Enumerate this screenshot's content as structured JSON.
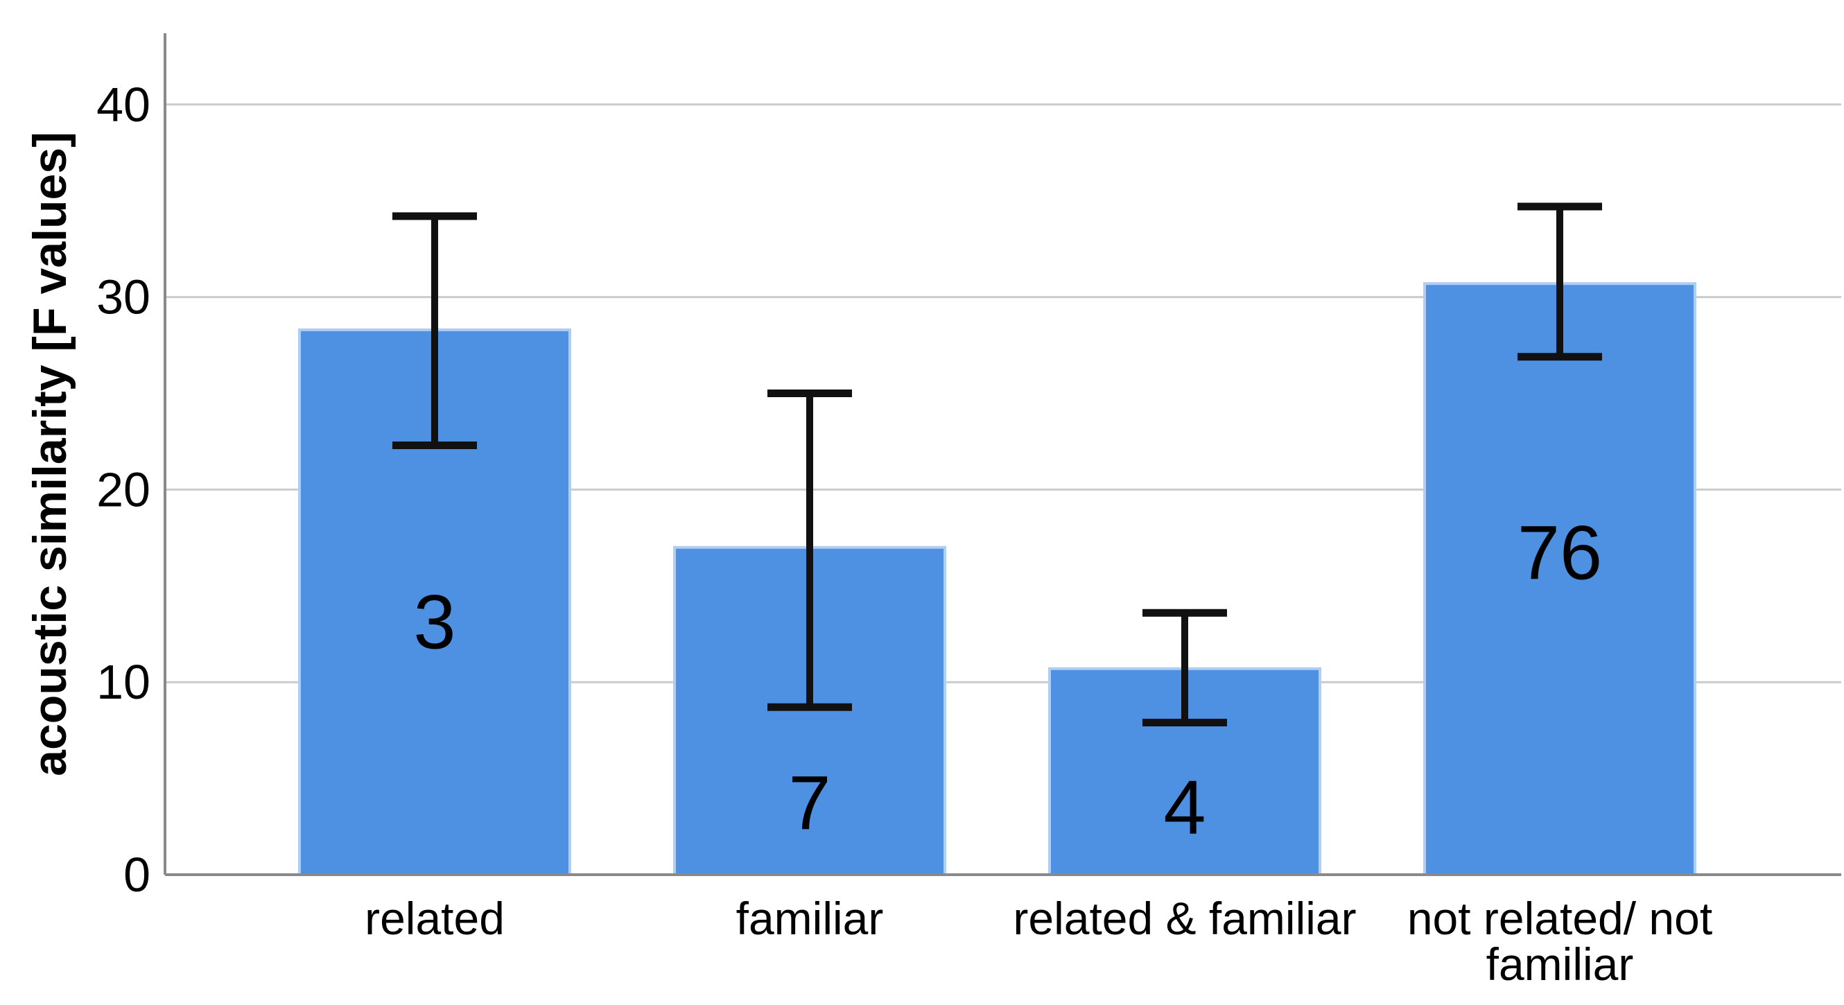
{
  "chart_data": {
    "type": "bar",
    "title": "",
    "xlabel": "",
    "ylabel": "acoustic similarity [F values]",
    "ylim": [
      0,
      43.7
    ],
    "yticks": [
      0,
      10,
      20,
      30,
      40
    ],
    "grid": "horizontal gridlines at 10,20,30,40",
    "legend_position": "none",
    "categories": [
      "related",
      "familiar",
      "related & familiar",
      "not related/ not\nfamiliar"
    ],
    "values": [
      28.3,
      17.0,
      10.7,
      30.7
    ],
    "error_bars": {
      "upper": [
        34.2,
        25.0,
        13.6,
        34.7
      ],
      "lower": [
        22.3,
        8.7,
        7.9,
        26.9
      ]
    },
    "bar_labels": [
      "3",
      "7",
      "4",
      "76"
    ],
    "bar_label_y": [
      13.1,
      3.7,
      3.5,
      16.7
    ],
    "colors": {
      "bar_fill": "#4E91E2",
      "bar_border": "#AFCEF2",
      "gridline": "#CBCBCB",
      "axis": "#898989",
      "error_bar": "#111111",
      "text": "#000000",
      "background": "#FFFFFF"
    }
  }
}
